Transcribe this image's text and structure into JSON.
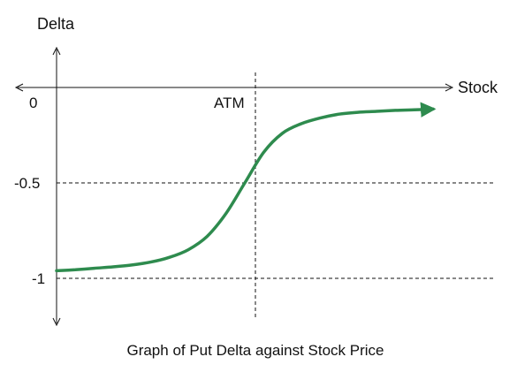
{
  "chart_data": {
    "type": "line",
    "title": "Graph of Put Delta against Stock Price",
    "xlabel": "Stock",
    "ylabel": "Delta",
    "xlim": [
      0,
      10
    ],
    "ylim": [
      -1.2,
      0
    ],
    "x_tick_labels": [
      {
        "label": "ATM",
        "value": 5
      }
    ],
    "y_tick_labels": [
      {
        "label": "0",
        "value": 0
      },
      {
        "label": "-0.5",
        "value": -0.5
      },
      {
        "label": "-1",
        "value": -1
      }
    ],
    "reference_lines": {
      "horizontal": [
        -0.5,
        -1
      ],
      "vertical": [
        5
      ]
    },
    "series": [
      {
        "x": [
          0,
          0.5,
          1,
          1.5,
          2,
          2.5,
          3,
          3.5,
          4,
          4.5,
          5,
          5.5,
          6,
          6.5,
          7,
          7.5,
          8,
          8.5,
          9,
          9.5,
          10
        ],
        "values": [
          -0.96,
          -0.955,
          -0.947,
          -0.94,
          -0.93,
          -0.915,
          -0.89,
          -0.85,
          -0.78,
          -0.66,
          -0.5,
          -0.34,
          -0.24,
          -0.19,
          -0.16,
          -0.14,
          -0.13,
          -0.125,
          -0.12,
          -0.117,
          -0.113
        ],
        "color": "#2e8b4e"
      }
    ],
    "grid": false,
    "legend": "none"
  }
}
